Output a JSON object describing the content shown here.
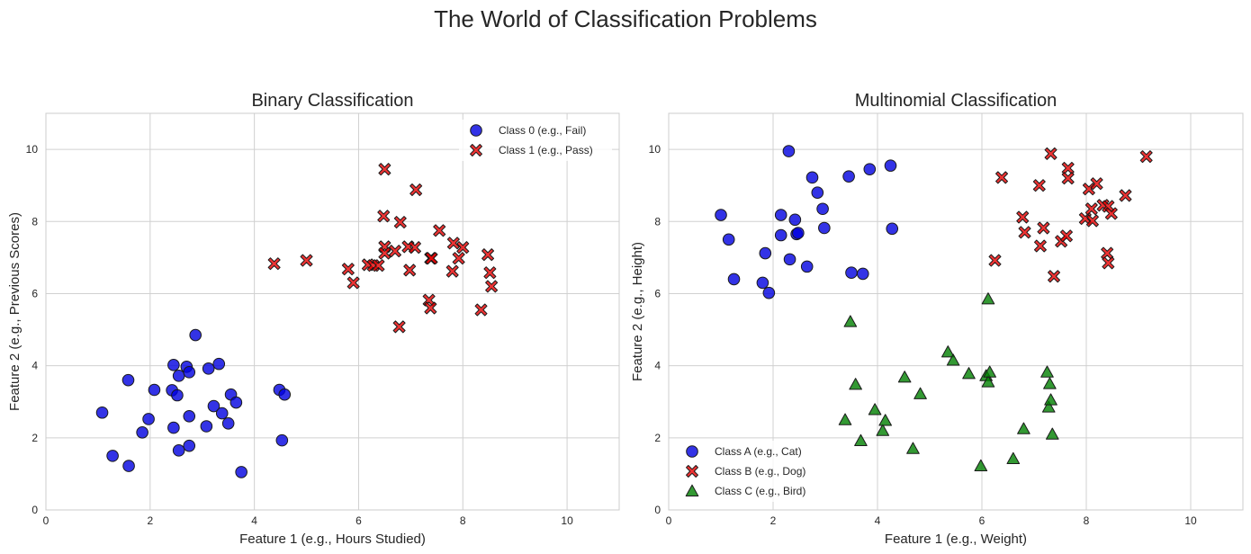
{
  "suptitle": "The World of Classification Problems",
  "chart_data": [
    {
      "type": "scatter",
      "title": "Binary Classification",
      "xlabel": "Feature 1 (e.g., Hours Studied)",
      "ylabel": "Feature 2 (e.g., Previous Scores)",
      "xlim": [
        0,
        11
      ],
      "ylim": [
        0,
        11
      ],
      "xticks": [
        0,
        2,
        4,
        6,
        8,
        10
      ],
      "yticks": [
        0,
        2,
        4,
        6,
        8,
        10
      ],
      "grid": true,
      "legend_position": "upper right",
      "series": [
        {
          "name": "Class 0 (e.g., Fail)",
          "marker": "circle",
          "color": "#0000e0",
          "points": [
            [
              1.08,
              2.7
            ],
            [
              1.28,
              1.5
            ],
            [
              1.58,
              3.6
            ],
            [
              1.59,
              1.22
            ],
            [
              1.85,
              2.15
            ],
            [
              1.97,
              2.52
            ],
            [
              2.08,
              3.33
            ],
            [
              2.42,
              3.32
            ],
            [
              2.45,
              4.02
            ],
            [
              2.45,
              2.28
            ],
            [
              2.52,
              3.18
            ],
            [
              2.55,
              3.72
            ],
            [
              2.55,
              1.65
            ],
            [
              2.7,
              3.97
            ],
            [
              2.75,
              3.82
            ],
            [
              2.75,
              2.6
            ],
            [
              2.75,
              1.78
            ],
            [
              2.87,
              4.85
            ],
            [
              3.08,
              2.32
            ],
            [
              3.12,
              3.92
            ],
            [
              3.22,
              2.88
            ],
            [
              3.32,
              4.05
            ],
            [
              3.38,
              2.68
            ],
            [
              3.5,
              2.4
            ],
            [
              3.55,
              3.2
            ],
            [
              3.65,
              2.98
            ],
            [
              3.75,
              1.05
            ],
            [
              4.48,
              3.33
            ],
            [
              4.53,
              1.93
            ],
            [
              4.58,
              3.2
            ]
          ]
        },
        {
          "name": "Class 1 (e.g., Pass)",
          "marker": "X",
          "color": "#e80000",
          "points": [
            [
              4.38,
              6.83
            ],
            [
              5.0,
              6.92
            ],
            [
              5.8,
              6.68
            ],
            [
              5.9,
              6.3
            ],
            [
              6.18,
              6.8
            ],
            [
              6.28,
              6.78
            ],
            [
              6.38,
              6.78
            ],
            [
              6.48,
              8.15
            ],
            [
              6.5,
              7.3
            ],
            [
              6.5,
              7.12
            ],
            [
              6.5,
              9.45
            ],
            [
              6.7,
              7.18
            ],
            [
              6.78,
              5.08
            ],
            [
              6.8,
              7.98
            ],
            [
              6.95,
              7.3
            ],
            [
              6.98,
              6.65
            ],
            [
              7.08,
              7.28
            ],
            [
              7.1,
              8.88
            ],
            [
              7.35,
              5.82
            ],
            [
              7.38,
              5.6
            ],
            [
              7.38,
              6.98
            ],
            [
              7.4,
              6.98
            ],
            [
              7.55,
              7.75
            ],
            [
              7.8,
              6.62
            ],
            [
              7.82,
              7.4
            ],
            [
              7.92,
              6.98
            ],
            [
              8.0,
              7.28
            ],
            [
              8.35,
              5.55
            ],
            [
              8.48,
              7.08
            ],
            [
              8.52,
              6.58
            ],
            [
              8.55,
              6.2
            ]
          ]
        }
      ]
    },
    {
      "type": "scatter",
      "title": "Multinomial Classification",
      "xlabel": "Feature 1 (e.g., Weight)",
      "ylabel": "Feature 2 (e.g., Height)",
      "xlim": [
        0,
        11
      ],
      "ylim": [
        0,
        11
      ],
      "xticks": [
        0,
        2,
        4,
        6,
        8,
        10
      ],
      "yticks": [
        0,
        2,
        4,
        6,
        8,
        10
      ],
      "grid": true,
      "legend_position": "lower left",
      "series": [
        {
          "name": "Class A (e.g., Cat)",
          "marker": "circle",
          "color": "#0000e0",
          "points": [
            [
              1.0,
              8.18
            ],
            [
              1.15,
              7.5
            ],
            [
              1.25,
              6.4
            ],
            [
              1.8,
              6.3
            ],
            [
              1.85,
              7.12
            ],
            [
              1.92,
              6.02
            ],
            [
              2.15,
              8.18
            ],
            [
              2.15,
              7.62
            ],
            [
              2.3,
              9.95
            ],
            [
              2.32,
              6.95
            ],
            [
              2.42,
              8.05
            ],
            [
              2.45,
              7.65
            ],
            [
              2.48,
              7.68
            ],
            [
              2.65,
              6.75
            ],
            [
              2.75,
              9.22
            ],
            [
              2.85,
              8.8
            ],
            [
              2.95,
              8.35
            ],
            [
              2.98,
              7.82
            ],
            [
              3.45,
              9.25
            ],
            [
              3.5,
              6.58
            ],
            [
              3.72,
              6.55
            ],
            [
              3.85,
              9.45
            ],
            [
              4.25,
              9.55
            ],
            [
              4.28,
              7.8
            ]
          ]
        },
        {
          "name": "Class B (e.g., Dog)",
          "marker": "X",
          "color": "#e80000",
          "points": [
            [
              6.25,
              6.92
            ],
            [
              6.38,
              9.22
            ],
            [
              6.78,
              8.12
            ],
            [
              6.82,
              7.7
            ],
            [
              7.1,
              9.0
            ],
            [
              7.12,
              7.32
            ],
            [
              7.18,
              7.82
            ],
            [
              7.32,
              9.88
            ],
            [
              7.38,
              6.48
            ],
            [
              7.52,
              7.45
            ],
            [
              7.62,
              7.6
            ],
            [
              7.65,
              9.48
            ],
            [
              7.65,
              9.2
            ],
            [
              7.98,
              8.08
            ],
            [
              8.05,
              8.9
            ],
            [
              8.1,
              8.35
            ],
            [
              8.12,
              8.02
            ],
            [
              8.2,
              9.05
            ],
            [
              8.32,
              8.45
            ],
            [
              8.4,
              7.12
            ],
            [
              8.42,
              6.85
            ],
            [
              8.42,
              8.42
            ],
            [
              8.48,
              8.22
            ],
            [
              8.75,
              8.72
            ],
            [
              9.15,
              9.8
            ]
          ]
        },
        {
          "name": "Class C (e.g., Bird)",
          "marker": "triangle",
          "color": "#008000",
          "points": [
            [
              3.38,
              2.5
            ],
            [
              3.48,
              5.22
            ],
            [
              3.58,
              3.48
            ],
            [
              3.68,
              1.92
            ],
            [
              3.95,
              2.78
            ],
            [
              4.1,
              2.2
            ],
            [
              4.15,
              2.48
            ],
            [
              4.52,
              3.68
            ],
            [
              4.68,
              1.7
            ],
            [
              4.82,
              3.22
            ],
            [
              5.35,
              4.38
            ],
            [
              5.45,
              4.15
            ],
            [
              5.75,
              3.78
            ],
            [
              5.98,
              1.22
            ],
            [
              6.08,
              3.72
            ],
            [
              6.12,
              5.85
            ],
            [
              6.12,
              3.55
            ],
            [
              6.15,
              3.82
            ],
            [
              6.6,
              1.42
            ],
            [
              6.8,
              2.25
            ],
            [
              7.25,
              3.82
            ],
            [
              7.28,
              2.85
            ],
            [
              7.3,
              3.5
            ],
            [
              7.32,
              3.05
            ],
            [
              7.35,
              2.1
            ]
          ]
        }
      ]
    }
  ]
}
